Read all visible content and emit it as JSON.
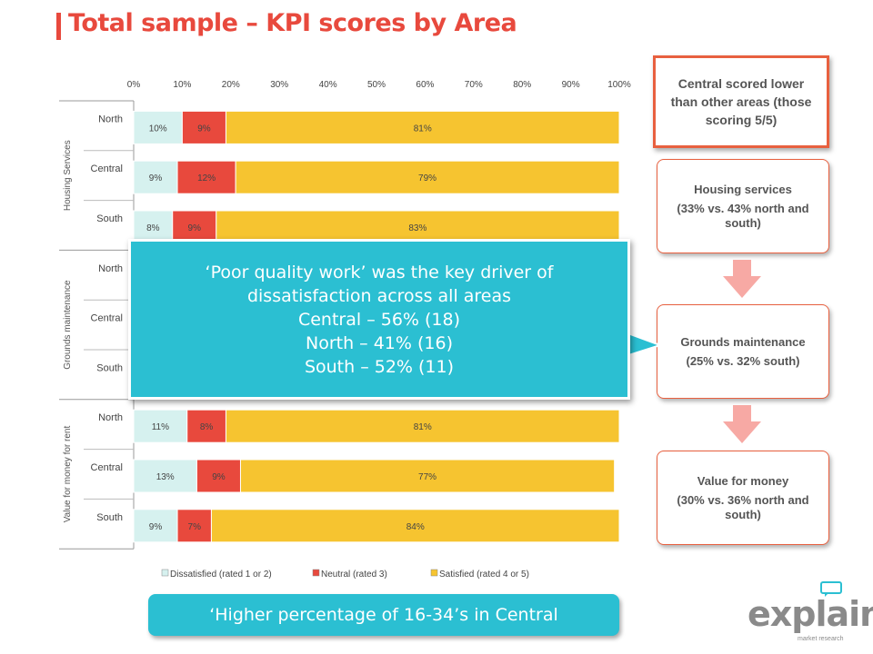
{
  "slide": {
    "title": "Total sample – KPI scores by Area",
    "callout_top": "Central scored lower than other areas (those scoring 5/5)",
    "flow": [
      {
        "title": "Housing services",
        "detail": "(33% vs. 43% north and south)"
      },
      {
        "title": "Grounds maintenance",
        "detail": "(25% vs. 32% south)"
      },
      {
        "title": "Value for money",
        "detail": "(30% vs. 36% north and south)"
      }
    ],
    "overlay_lines": [
      "‘Poor quality work’ was the key driver of",
      "dissatisfaction across all areas",
      "Central – 56% (18)",
      "North – 41% (16)",
      "South – 52% (11)"
    ],
    "bottom_note": "‘Higher percentage of 16-34’s in Central",
    "logo_text": "explain",
    "logo_sub": "market research"
  },
  "colors": {
    "accent": "#e8493d",
    "dissatisfied": "#d6f1ef",
    "neutral": "#e8493d",
    "satisfied": "#f6c430",
    "overlay": "#2bbfd2"
  },
  "chart_data": {
    "type": "bar",
    "orientation": "horizontal",
    "stacked": true,
    "x_ticks": [
      "0%",
      "10%",
      "20%",
      "30%",
      "40%",
      "50%",
      "60%",
      "70%",
      "80%",
      "90%",
      "100%"
    ],
    "xlim": [
      0,
      100
    ],
    "groups": [
      {
        "name": "Housing Services",
        "rows": [
          {
            "label": "North",
            "values": [
              10,
              9,
              81
            ]
          },
          {
            "label": "Central",
            "values": [
              9,
              12,
              79
            ]
          },
          {
            "label": "South",
            "values": [
              8,
              9,
              83
            ]
          }
        ]
      },
      {
        "name": "Grounds maintenance",
        "rows": [
          {
            "label": "North",
            "values": null
          },
          {
            "label": "Central",
            "values": null
          },
          {
            "label": "South",
            "values": null
          }
        ]
      },
      {
        "name": "Value for money for rent",
        "rows": [
          {
            "label": "North",
            "values": [
              11,
              8,
              81
            ]
          },
          {
            "label": "Central",
            "values": [
              13,
              9,
              77
            ]
          },
          {
            "label": "South",
            "values": [
              9,
              7,
              84
            ]
          }
        ]
      }
    ],
    "series": [
      {
        "name": "Dissatisfied (rated 1 or 2)",
        "color": "#d6f1ef"
      },
      {
        "name": "Neutral (rated 3)",
        "color": "#e8493d"
      },
      {
        "name": "Satisfied (rated 4 or 5)",
        "color": "#f6c430"
      }
    ],
    "legend_position": "bottom"
  }
}
